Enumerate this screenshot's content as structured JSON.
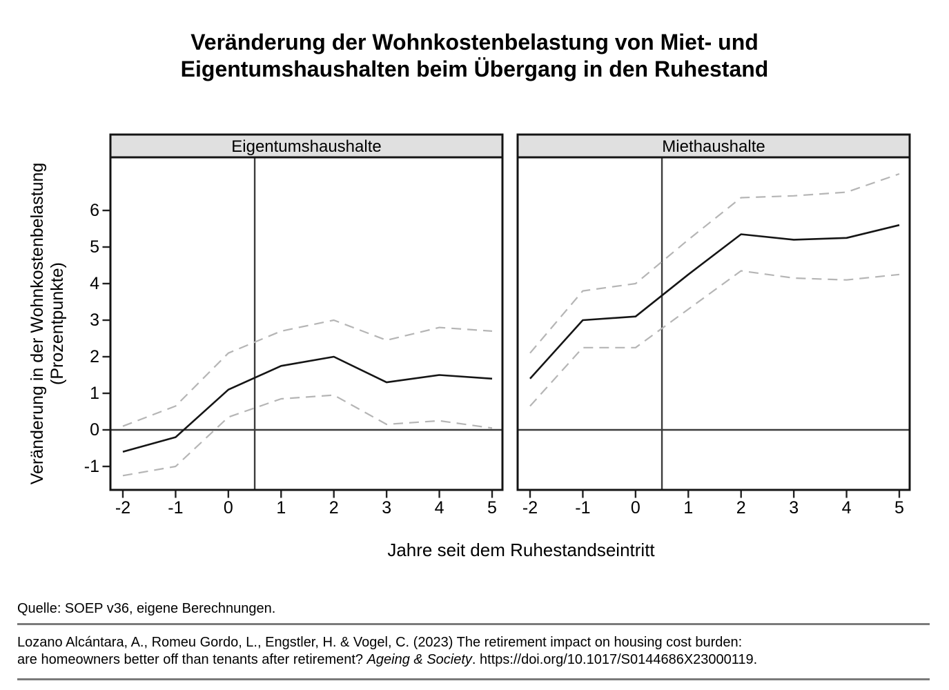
{
  "title": {
    "line1": "Veränderung der Wohnkostenbelastung von Miet- und",
    "line2": "Eigentumshaushalten beim Übergang in den Ruhestand"
  },
  "footer": {
    "source": "Quelle: SOEP v36, eigene Berechnungen.",
    "citation_line1": "Lozano Alcántara, A., Romeu Gordo, L., Engstler, H. & Vogel, C. (2023) The retirement impact on housing cost burden:",
    "citation_line2_pre": "are homeowners better off than tenants after retirement? ",
    "citation_line2_italic": "Ageing & Society",
    "citation_line2_post": ". https://doi.org/10.1017/S0144686X23000119."
  },
  "colors": {
    "solid_line": "#151515",
    "dashed_line": "#b5b5b5",
    "reference_line": "#3c3c3c",
    "panel_border": "#141414",
    "header_fill": "#e0e0e0",
    "tick": "#222222",
    "rule": "#7a7a7a"
  },
  "chart_data": {
    "type": "line",
    "x": [
      -2,
      -1,
      0,
      1,
      2,
      3,
      4,
      5
    ],
    "x_ticks": [
      -2,
      -1,
      0,
      1,
      2,
      3,
      4,
      5
    ],
    "y_ticks": [
      -1,
      0,
      1,
      2,
      3,
      4,
      5,
      6
    ],
    "ylim": [
      -1.65,
      7.45
    ],
    "xlabel": "Jahre seit dem Ruhestandseintritt",
    "ylabel_line1": "Veränderung in der Wohnkostenbelastung",
    "ylabel_line2": "(Prozentpunkte)",
    "grid": false,
    "legend": "none",
    "reference_lines": {
      "vertical_x": 0.5,
      "horizontal_y": 0
    },
    "panels": [
      {
        "title": "Eigentumshaushalte",
        "series": [
          {
            "name": "estimate",
            "style": "solid",
            "values": [
              -0.6,
              -0.2,
              1.1,
              1.75,
              2.0,
              1.3,
              1.5,
              1.4
            ]
          },
          {
            "name": "ci_upper",
            "style": "dashed",
            "values": [
              0.1,
              0.65,
              2.1,
              2.7,
              3.0,
              2.45,
              2.8,
              2.7
            ]
          },
          {
            "name": "ci_lower",
            "style": "dashed",
            "values": [
              -1.25,
              -1.0,
              0.35,
              0.85,
              0.95,
              0.15,
              0.25,
              0.05
            ]
          }
        ]
      },
      {
        "title": "Miethaushalte",
        "series": [
          {
            "name": "estimate",
            "style": "solid",
            "values": [
              1.4,
              3.0,
              3.1,
              4.25,
              5.35,
              5.2,
              5.25,
              5.6
            ]
          },
          {
            "name": "ci_upper",
            "style": "dashed",
            "values": [
              2.1,
              3.8,
              4.0,
              5.2,
              6.35,
              6.4,
              6.5,
              7.0
            ]
          },
          {
            "name": "ci_lower",
            "style": "dashed",
            "values": [
              0.65,
              2.25,
              2.25,
              3.3,
              4.35,
              4.15,
              4.1,
              4.25
            ]
          }
        ]
      }
    ]
  }
}
